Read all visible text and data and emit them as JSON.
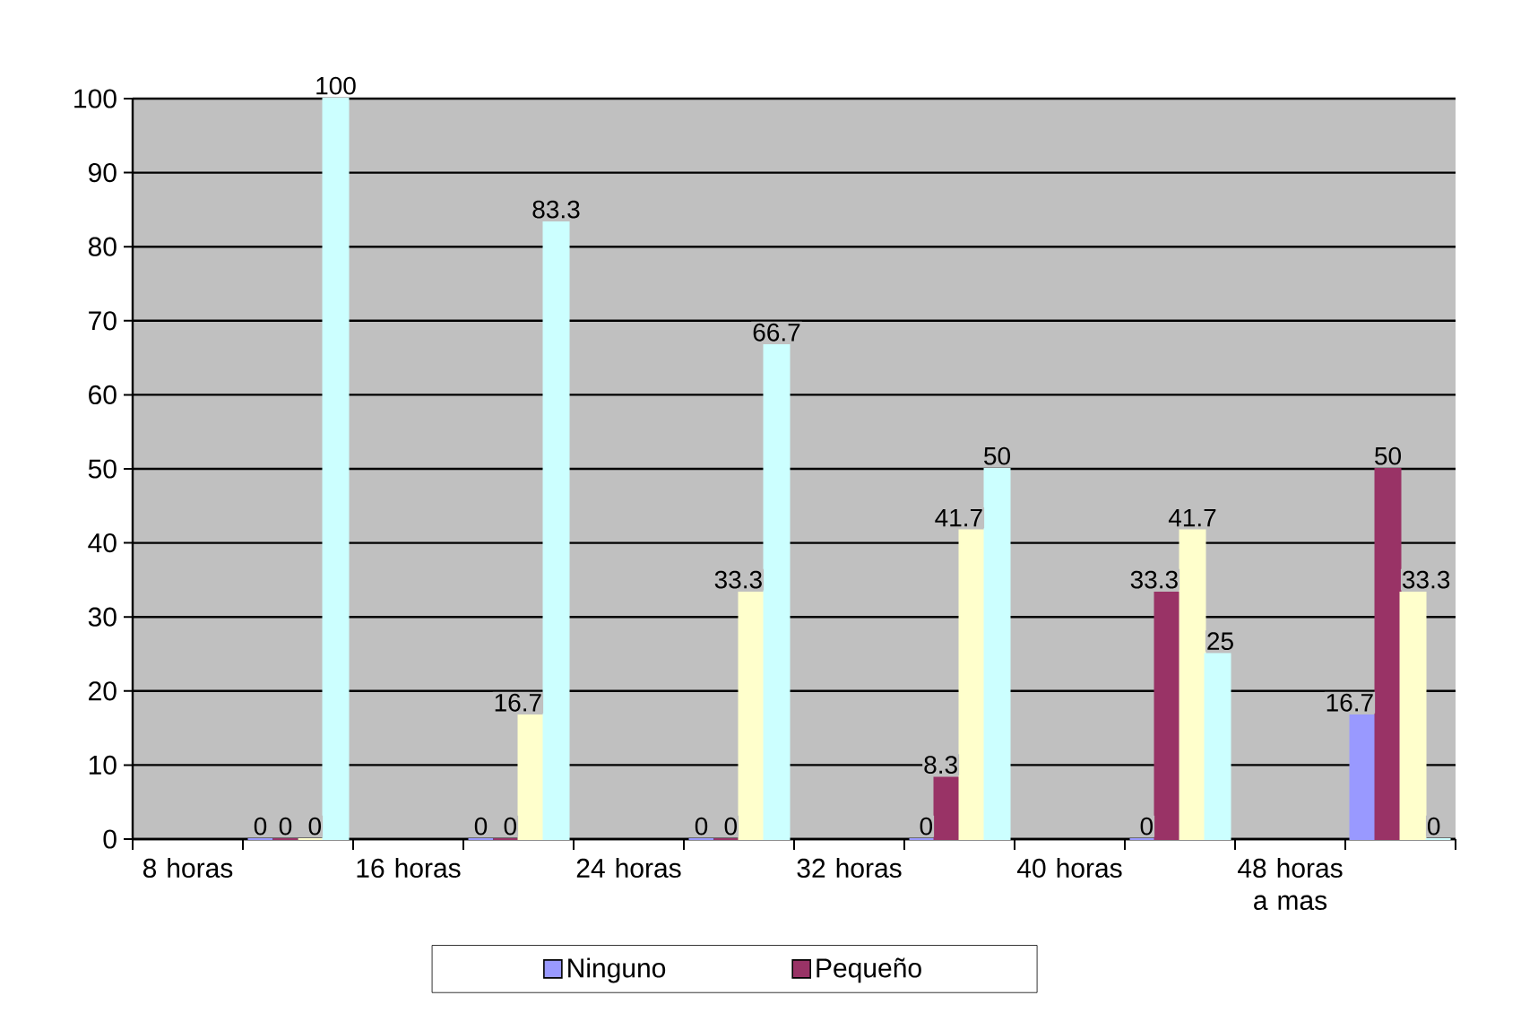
{
  "chart_data": {
    "type": "bar",
    "categories": [
      "8 horas",
      null,
      "16 horas",
      null,
      "24 horas",
      null,
      "32 horas",
      null,
      "40 horas",
      null,
      "48 horas a mas",
      null
    ],
    "series": [
      {
        "name": "Ninguno",
        "color": "#9999ff",
        "values": [
          null,
          0,
          null,
          0,
          null,
          0,
          null,
          0,
          null,
          0,
          null,
          16.7
        ]
      },
      {
        "name": "Pequeño",
        "color": "#993366",
        "values": [
          null,
          0,
          null,
          0,
          null,
          0,
          null,
          8.3,
          null,
          33.3,
          null,
          50
        ]
      },
      {
        "color": "#ffffcc",
        "values": [
          null,
          0,
          null,
          16.7,
          null,
          33.3,
          null,
          41.7,
          null,
          41.7,
          null,
          33.3
        ]
      },
      {
        "color": "#ccffff",
        "values": [
          null,
          100,
          null,
          83.3,
          null,
          66.7,
          null,
          50,
          null,
          25,
          null,
          0
        ]
      }
    ],
    "ylim": [
      0,
      100
    ],
    "yticks": [
      0,
      10,
      20,
      30,
      40,
      50,
      60,
      70,
      80,
      90,
      100
    ],
    "grid": "y",
    "legend": "bottom",
    "data_labels": true
  }
}
